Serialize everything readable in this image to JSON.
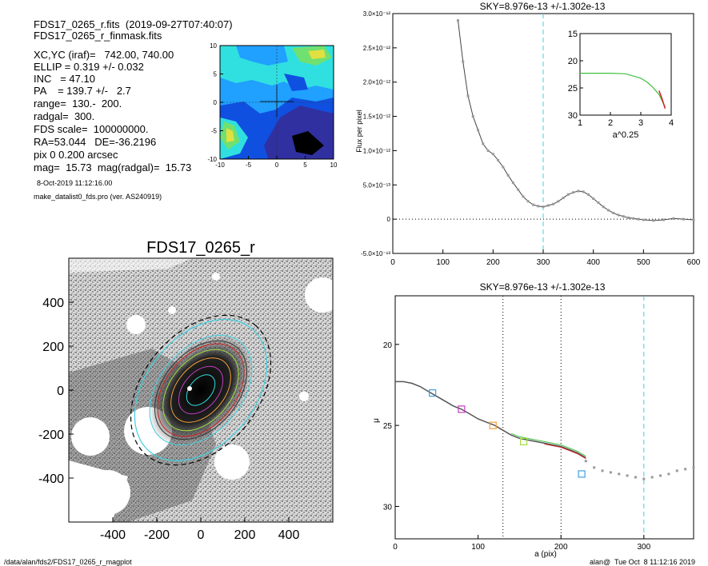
{
  "header": {
    "file_line": "FDS17_0265_r.fits  (2019-09-27T07:40:07)",
    "mask_line": "FDS17_0265_r_finmask.fits",
    "info_lines": [
      "XC,YC (iraf)=   742.00, 740.00",
      "ELLIP = 0.319 +/- 0.032",
      "INC   = 47.10",
      "PA    = 139.7 +/-   2.7",
      "range=  130.-  200.",
      "radgal=  300.",
      "FDS scale=  100000000.",
      "RA=53.044   DE=-36.2196",
      "pix 0 0.200 arcsec",
      "mag=  15.73  mag(radgal)=  15.73"
    ],
    "date_line": "8-Oct-2019 11:12:16.00",
    "prog_line": "make_datalist0_fds.pro (ver. AS240919)"
  },
  "footer": {
    "path": "/data/alan/fds2/FDS17_0265_r_magplot",
    "stamp": "alan@  Tue Oct  8 11:12:16 2019"
  },
  "colors": {
    "accent_cyan": "#40d0e0",
    "profile_gray": "#808080",
    "green": "#40c040",
    "red": "#d02020"
  },
  "chart_data": [
    {
      "type": "heatmap",
      "title": "",
      "xlim": [
        -10,
        10
      ],
      "ylim": [
        -10,
        10
      ],
      "x_ticks": [
        "-10",
        "-5",
        "0",
        "5",
        "10"
      ],
      "y_ticks": [
        "10",
        "5",
        "0",
        "-5",
        "-10"
      ],
      "color_levels": [
        "#3030a0",
        "#1050e0",
        "#20a0ff",
        "#30e0e0",
        "#70e070",
        "#e0e040"
      ]
    },
    {
      "type": "scatter",
      "title": "FDS17_0265_r",
      "xlim": [
        -600,
        600
      ],
      "ylim": [
        -600,
        600
      ],
      "x_ticks": [
        "-400",
        "-200",
        "0",
        "200",
        "400"
      ],
      "y_ticks": [
        "400",
        "200",
        "0",
        "-200",
        "-400"
      ],
      "ellipse_pa_deg": 139.7,
      "ellipticity": 0.319
    },
    {
      "type": "line",
      "title": "SKY=8.976e-13 +/-1.302e-13",
      "xlabel": "",
      "ylabel": "Flux per pixel",
      "xlim": [
        0,
        600
      ],
      "ylim": [
        -5e-13,
        3e-12
      ],
      "x_ticks": [
        "0",
        "100",
        "200",
        "300",
        "400",
        "500",
        "600"
      ],
      "y_ticks": [
        "-5.0×10⁻¹³",
        "0",
        "5.0×10⁻¹³",
        "1.0×10⁻¹²",
        "1.5×10⁻¹²",
        "2.0×10⁻¹²",
        "2.5×10⁻¹²",
        "3.0×10⁻¹²"
      ],
      "vline_x": 300,
      "series": [
        {
          "x": [
            130,
            140,
            150,
            160,
            170,
            180,
            190,
            200,
            210,
            220,
            230,
            240,
            250,
            260,
            270,
            280,
            290,
            300,
            310,
            320,
            330,
            340,
            350,
            360,
            370,
            380,
            390,
            400,
            410,
            420,
            430,
            440,
            450,
            460,
            470,
            480,
            490,
            500,
            520,
            540,
            560,
            580,
            600
          ],
          "y": [
            2.9e-12,
            2.3e-12,
            1.8e-12,
            1.5e-12,
            1.3e-12,
            1.1e-12,
            1e-12,
            9.5e-13,
            8.6e-13,
            7.6e-13,
            6.4e-13,
            5.3e-13,
            4.3e-13,
            3.3e-13,
            2.6e-13,
            2.1e-13,
            1.9e-13,
            1.8e-13,
            2e-13,
            2.2e-13,
            2.6e-13,
            3.1e-13,
            3.6e-13,
            3.9e-13,
            4.1e-13,
            4e-13,
            3.6e-13,
            3e-13,
            2.4e-13,
            1.8e-13,
            1.3e-13,
            9e-14,
            6e-14,
            4e-14,
            2e-14,
            1e-14,
            0,
            -1e-14,
            -2e-14,
            -1e-14,
            1e-14,
            0,
            -1e-14
          ]
        }
      ],
      "inset": {
        "xlabel": "a^0.25",
        "xlim": [
          1,
          4
        ],
        "ylim": [
          15,
          30
        ],
        "x_ticks": [
          "1",
          "2",
          "3",
          "4"
        ],
        "y_ticks": [
          "15",
          "20",
          "25",
          "30"
        ],
        "series": [
          {
            "x": [
              1.0,
              1.5,
              2.0,
              2.5,
              3.0,
              3.2,
              3.4,
              3.6,
              3.8
            ],
            "y": [
              22.3,
              22.3,
              22.3,
              22.4,
              23.2,
              23.9,
              24.9,
              26.2,
              28.5
            ]
          }
        ]
      }
    },
    {
      "type": "line",
      "title": "SKY=8.976e-13 +/-1.302e-13",
      "xlabel": "a (pix)",
      "ylabel": "μ",
      "xlim": [
        0,
        360
      ],
      "ylim": [
        32,
        17
      ],
      "x_ticks": [
        "0",
        "100",
        "200",
        "300"
      ],
      "y_ticks": [
        "20",
        "25",
        "30"
      ],
      "vlines_dotted": [
        130,
        200
      ],
      "vline_dashed": 300,
      "series": [
        {
          "x": [
            0,
            10,
            20,
            30,
            40,
            50,
            60,
            70,
            80,
            90,
            100,
            110,
            120,
            130,
            140,
            150,
            160,
            170,
            180,
            190,
            200,
            210,
            220,
            230
          ],
          "y": [
            22.3,
            22.3,
            22.4,
            22.6,
            22.9,
            23.2,
            23.5,
            23.8,
            24.0,
            24.3,
            24.6,
            24.8,
            25.0,
            25.3,
            25.6,
            25.8,
            25.9,
            26.0,
            26.1,
            26.2,
            26.3,
            26.5,
            26.7,
            27.0
          ]
        }
      ],
      "sky_points": {
        "x": [
          230,
          240,
          250,
          260,
          270,
          280,
          290,
          300,
          310,
          320,
          330,
          340,
          350,
          360
        ],
        "y": [
          27.2,
          27.6,
          27.8,
          27.9,
          28.0,
          28.1,
          28.2,
          28.3,
          28.2,
          28.1,
          28.0,
          27.8,
          27.7,
          27.6
        ]
      },
      "markers": [
        {
          "x": 45,
          "y": 23.0,
          "color": "#40a0e0"
        },
        {
          "x": 80,
          "y": 24.0,
          "color": "#c040c0"
        },
        {
          "x": 118,
          "y": 25.0,
          "color": "#f0a040"
        },
        {
          "x": 155,
          "y": 26.0,
          "color": "#a0e040"
        },
        {
          "x": 225,
          "y": 28.0,
          "color": "#40a0e0"
        }
      ]
    }
  ]
}
